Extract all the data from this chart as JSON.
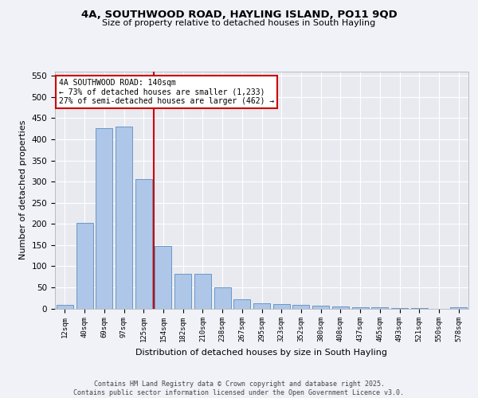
{
  "title1": "4A, SOUTHWOOD ROAD, HAYLING ISLAND, PO11 9QD",
  "title2": "Size of property relative to detached houses in South Hayling",
  "xlabel": "Distribution of detached houses by size in South Hayling",
  "ylabel": "Number of detached properties",
  "categories": [
    "12sqm",
    "40sqm",
    "69sqm",
    "97sqm",
    "125sqm",
    "154sqm",
    "182sqm",
    "210sqm",
    "238sqm",
    "267sqm",
    "295sqm",
    "323sqm",
    "352sqm",
    "380sqm",
    "408sqm",
    "437sqm",
    "465sqm",
    "493sqm",
    "521sqm",
    "550sqm",
    "578sqm"
  ],
  "values": [
    8,
    202,
    427,
    430,
    305,
    147,
    81,
    81,
    50,
    22,
    12,
    10,
    8,
    6,
    4,
    3,
    2,
    1,
    1,
    0,
    3
  ],
  "bar_color": "#aec6e8",
  "bar_edgecolor": "#5a8fbf",
  "background_color": "#e8eaf0",
  "grid_color": "#ffffff",
  "vline_x": 4.5,
  "vline_color": "#cc0000",
  "annotation_text": "4A SOUTHWOOD ROAD: 140sqm\n← 73% of detached houses are smaller (1,233)\n27% of semi-detached houses are larger (462) →",
  "annotation_box_color": "#cc0000",
  "footer": "Contains HM Land Registry data © Crown copyright and database right 2025.\nContains public sector information licensed under the Open Government Licence v3.0.",
  "ylim": [
    0,
    560
  ],
  "yticks": [
    0,
    50,
    100,
    150,
    200,
    250,
    300,
    350,
    400,
    450,
    500,
    550
  ],
  "fig_bg": "#f0f2f8"
}
